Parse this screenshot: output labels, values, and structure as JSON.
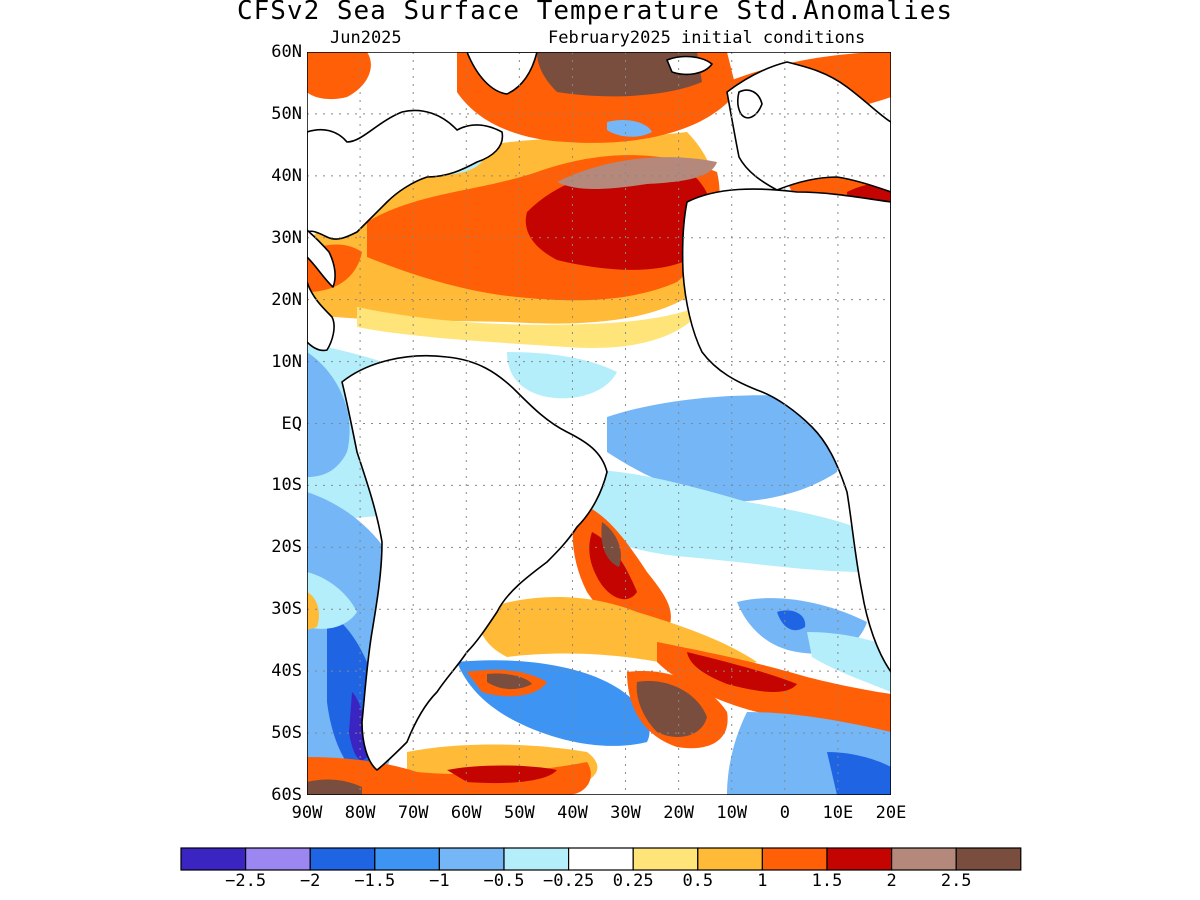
{
  "title": "CFSv2 Sea Surface Temperature Std.Anomalies",
  "subtitle_left": "Jun2025",
  "subtitle_right": "February2025 initial conditions",
  "map": {
    "lat_labels": [
      "60N",
      "50N",
      "40N",
      "30N",
      "20N",
      "10N",
      "EQ",
      "10S",
      "20S",
      "30S",
      "40S",
      "50S",
      "60S"
    ],
    "lon_labels": [
      "90W",
      "80W",
      "70W",
      "60W",
      "50W",
      "40W",
      "30W",
      "20W",
      "10W",
      "0",
      "10E",
      "20E"
    ],
    "lat_range": [
      -60,
      60
    ],
    "lon_range": [
      -90,
      20
    ],
    "grid": "dotted"
  },
  "colorbar": {
    "colors": [
      "#3a24c2",
      "#9c86f2",
      "#1e64e3",
      "#3e94f2",
      "#74b6f6",
      "#b4eefa",
      "#ffffff",
      "#ffe47a",
      "#ffbb37",
      "#ff5f06",
      "#c40400",
      "#b4887a",
      "#7a4e3e"
    ],
    "labels": [
      "−2.5",
      "−2",
      "−1.5",
      "−1",
      "−0.5",
      "−0.25",
      "0.25",
      "0.5",
      "1",
      "1.5",
      "2",
      "2.5"
    ]
  }
}
